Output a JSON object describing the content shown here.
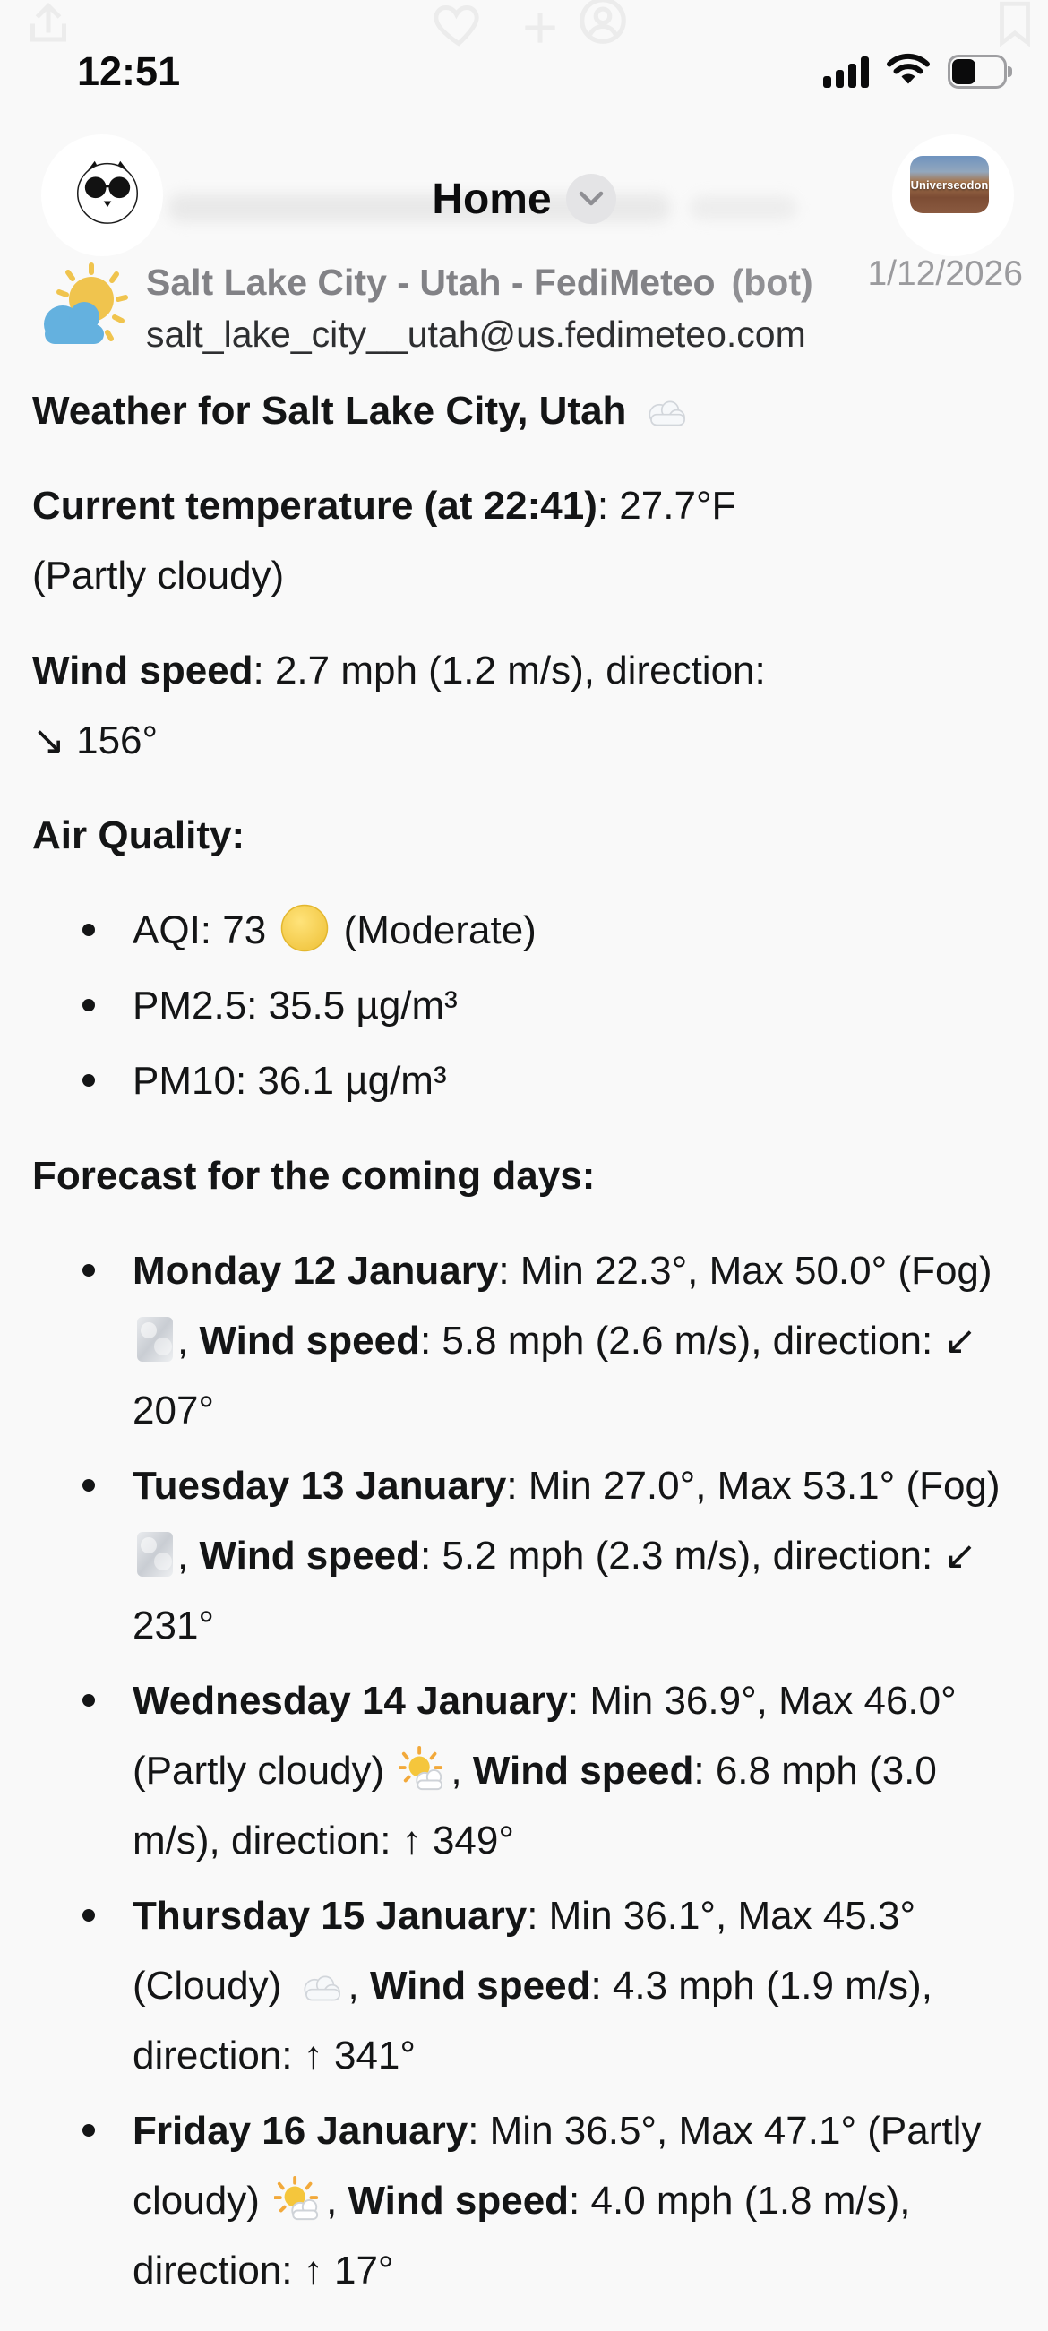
{
  "status_bar": {
    "time": "12:51"
  },
  "ghost_sheet": {
    "icons": [
      "share-icon",
      "heart-icon",
      "plus-icon",
      "profile-circle-icon",
      "bookmark-icon"
    ]
  },
  "header": {
    "title": "Home",
    "instance_badge": "Universeodon",
    "date": "1/12/2026"
  },
  "post": {
    "author": {
      "display_name": "Salt Lake City - Utah - FediMeteo",
      "bot_label": "(bot)",
      "handle": "salt_lake_city__utah@us.fedimeteo.com"
    },
    "title": {
      "text": "Weather for Salt Lake City, Utah ",
      "icon": "cloud"
    },
    "current": {
      "label": "Current temperature (at 22:41)",
      "value": ": 27.7°F",
      "condition": "(Partly cloudy)"
    },
    "wind": {
      "label": "Wind speed",
      "value": ": 2.7 mph (1.2 m/s), direction:",
      "direction": "↘ 156°"
    },
    "air_quality": {
      "heading": "Air Quality:",
      "items": [
        {
          "pre": "AQI: 73 ",
          "icon": "yellow-circle",
          "post": " (Moderate)"
        },
        {
          "pre": "PM2.5: 35.5 µg/m³"
        },
        {
          "pre": "PM10: 36.1 µg/m³"
        }
      ]
    },
    "forecast": {
      "heading": "Forecast for the coming days:",
      "items": [
        {
          "day": "Monday 12 January",
          "mid": ": Min 22.3°, Max 50.0° (Fog) ",
          "icon": "fog",
          "sep": ", ",
          "wind_label": "Wind speed",
          "tail": ": 5.8 mph (2.6 m/s), direction: ↙ 207°"
        },
        {
          "day": "Tuesday 13 January",
          "mid": ": Min 27.0°, Max 53.1° (Fog) ",
          "icon": "fog",
          "sep": ", ",
          "wind_label": "Wind speed",
          "tail": ": 5.2 mph (2.3 m/s), direction: ↙ 231°"
        },
        {
          "day": "Wednesday 14 January",
          "mid": ": Min 36.9°, Max 46.0° (Partly cloudy) ",
          "icon": "partly-cloudy",
          "sep": ", ",
          "wind_label": "Wind speed",
          "tail": ": 6.8 mph (3.0 m/s), direction: ↑ 349°"
        },
        {
          "day": "Thursday 15 January",
          "mid": ": Min 36.1°, Max 45.3° (Cloudy) ",
          "icon": "cloud",
          "sep": ", ",
          "wind_label": "Wind speed",
          "tail": ": 4.3 mph (1.9 m/s), direction: ↑ 341°"
        },
        {
          "day": "Friday 16 January",
          "mid": ": Min 36.5°, Max 47.1° (Partly cloudy) ",
          "icon": "partly-cloudy",
          "sep": ", ",
          "wind_label": "Wind speed",
          "tail": ": 4.0 mph (1.8 m/s), direction: ↑ 17°"
        }
      ]
    }
  },
  "colors": {
    "background": "#f9f9f9",
    "text": "#141516",
    "secondary_text": "#828286",
    "date_text": "#9b9b9e",
    "aqi_moderate": "#f2c83d",
    "fedimeteo_sun": "#f0c040",
    "fedimeteo_cloud": "#58abdd"
  }
}
